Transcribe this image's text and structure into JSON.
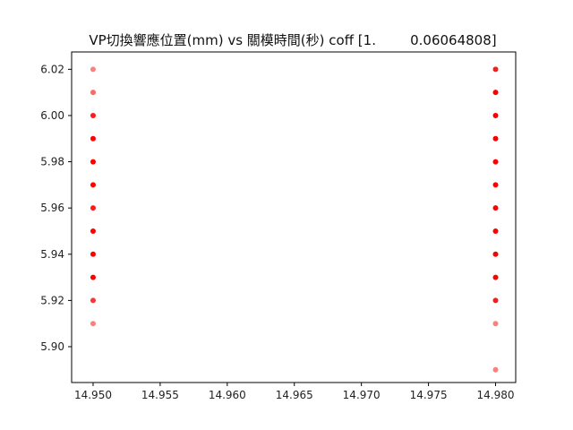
{
  "chart_data": {
    "type": "scatter",
    "title": "VP切換響應位置(mm) vs 關模時間(秒) coff [1.        0.06064808]",
    "xlabel": "",
    "ylabel": "",
    "xlim": [
      14.9484,
      14.9815
    ],
    "ylim": [
      5.8845,
      6.0275
    ],
    "xticks": [
      "14.950",
      "14.955",
      "14.960",
      "14.965",
      "14.970",
      "14.975",
      "14.980"
    ],
    "xtick_values": [
      14.95,
      14.955,
      14.96,
      14.965,
      14.97,
      14.975,
      14.98
    ],
    "yticks": [
      "5.90",
      "5.92",
      "5.94",
      "5.96",
      "5.98",
      "6.00",
      "6.02"
    ],
    "ytick_values": [
      5.9,
      5.92,
      5.94,
      5.96,
      5.98,
      6.0,
      6.02
    ],
    "grid": false,
    "marker_color": "#ff0000",
    "points": [
      {
        "x": 14.95,
        "y": 6.02,
        "alpha": 0.5
      },
      {
        "x": 14.95,
        "y": 6.01,
        "alpha": 0.6
      },
      {
        "x": 14.95,
        "y": 6.0,
        "alpha": 0.9
      },
      {
        "x": 14.95,
        "y": 5.99,
        "alpha": 1.0
      },
      {
        "x": 14.95,
        "y": 5.98,
        "alpha": 1.0
      },
      {
        "x": 14.95,
        "y": 5.97,
        "alpha": 1.0
      },
      {
        "x": 14.95,
        "y": 5.96,
        "alpha": 0.9
      },
      {
        "x": 14.95,
        "y": 5.95,
        "alpha": 1.0
      },
      {
        "x": 14.95,
        "y": 5.94,
        "alpha": 1.0
      },
      {
        "x": 14.95,
        "y": 5.93,
        "alpha": 1.0
      },
      {
        "x": 14.95,
        "y": 5.92,
        "alpha": 0.8
      },
      {
        "x": 14.95,
        "y": 5.91,
        "alpha": 0.5
      },
      {
        "x": 14.98,
        "y": 6.02,
        "alpha": 0.9
      },
      {
        "x": 14.98,
        "y": 6.01,
        "alpha": 1.0
      },
      {
        "x": 14.98,
        "y": 6.0,
        "alpha": 1.0
      },
      {
        "x": 14.98,
        "y": 5.99,
        "alpha": 1.0
      },
      {
        "x": 14.98,
        "y": 5.98,
        "alpha": 1.0
      },
      {
        "x": 14.98,
        "y": 5.97,
        "alpha": 1.0
      },
      {
        "x": 14.98,
        "y": 5.96,
        "alpha": 1.0
      },
      {
        "x": 14.98,
        "y": 5.95,
        "alpha": 1.0
      },
      {
        "x": 14.98,
        "y": 5.94,
        "alpha": 1.0
      },
      {
        "x": 14.98,
        "y": 5.93,
        "alpha": 1.0
      },
      {
        "x": 14.98,
        "y": 5.92,
        "alpha": 0.9
      },
      {
        "x": 14.98,
        "y": 5.91,
        "alpha": 0.5
      },
      {
        "x": 14.98,
        "y": 5.89,
        "alpha": 0.5
      }
    ]
  }
}
